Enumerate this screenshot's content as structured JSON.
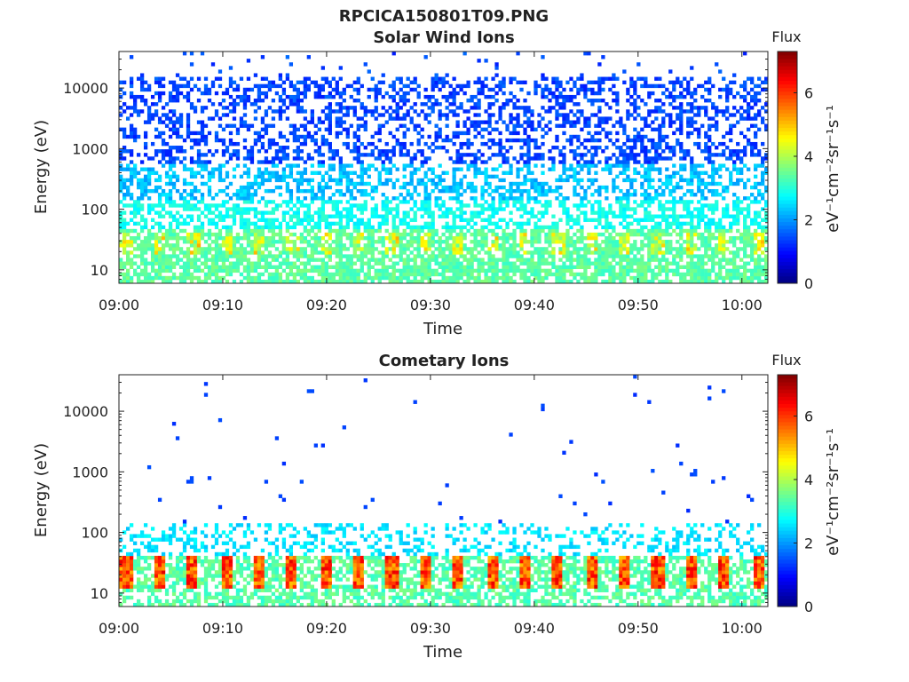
{
  "figure_title": "RPCICA150801T09.PNG",
  "colors": {
    "jet": [
      "#00007f",
      "#0000ff",
      "#007fff",
      "#00ffff",
      "#7fff7f",
      "#ffff00",
      "#ff7f00",
      "#ff0000",
      "#7f0000"
    ],
    "axis": "#222222",
    "background": "#ffffff"
  },
  "chart_data": [
    {
      "type": "heatmap",
      "title": "Solar Wind Ions",
      "xlabel": "Time",
      "ylabel": "Energy (eV)",
      "x_ticks": [
        "09:00",
        "09:10",
        "09:20",
        "09:30",
        "09:40",
        "09:50",
        "10:00"
      ],
      "x_range_minutes": [
        0,
        62.5
      ],
      "y_ticks": [
        "10",
        "100",
        "1000",
        "10000"
      ],
      "y_scale": "log",
      "y_range_eV": [
        6,
        40000
      ],
      "colorbar": {
        "title": "Flux",
        "label": "eV⁻¹cm⁻²sr⁻¹s⁻¹",
        "ticks": [
          "0",
          "2",
          "4",
          "6"
        ],
        "range": [
          0,
          7.3
        ],
        "colormap": "jet"
      },
      "description_of_values": {
        "dense_band_eV": [
          6,
          40000
        ],
        "typical_flux_high_energy": 1.3,
        "typical_flux_low_energy": 3.5,
        "peak_band_eV": [
          20,
          40
        ],
        "peak_flux": 4.8
      }
    },
    {
      "type": "heatmap",
      "title": "Cometary Ions",
      "xlabel": "Time",
      "ylabel": "Energy (eV)",
      "x_ticks": [
        "09:00",
        "09:10",
        "09:20",
        "09:30",
        "09:40",
        "09:50",
        "10:00"
      ],
      "x_range_minutes": [
        0,
        62.5
      ],
      "y_ticks": [
        "10",
        "100",
        "1000",
        "10000"
      ],
      "y_scale": "log",
      "y_range_eV": [
        6,
        40000
      ],
      "colorbar": {
        "title": "Flux",
        "label": "eV⁻¹cm⁻²sr⁻¹s⁻¹",
        "ticks": [
          "0",
          "2",
          "4",
          "6"
        ],
        "range": [
          0,
          7.3
        ],
        "colormap": "jet"
      },
      "description_of_values": {
        "sparse_above_eV": 150,
        "burst_period_minutes": 3.2,
        "burst_band_eV": [
          12,
          40
        ],
        "burst_peak_flux": 6.5,
        "background_low_energy_flux": 3.2
      }
    }
  ]
}
